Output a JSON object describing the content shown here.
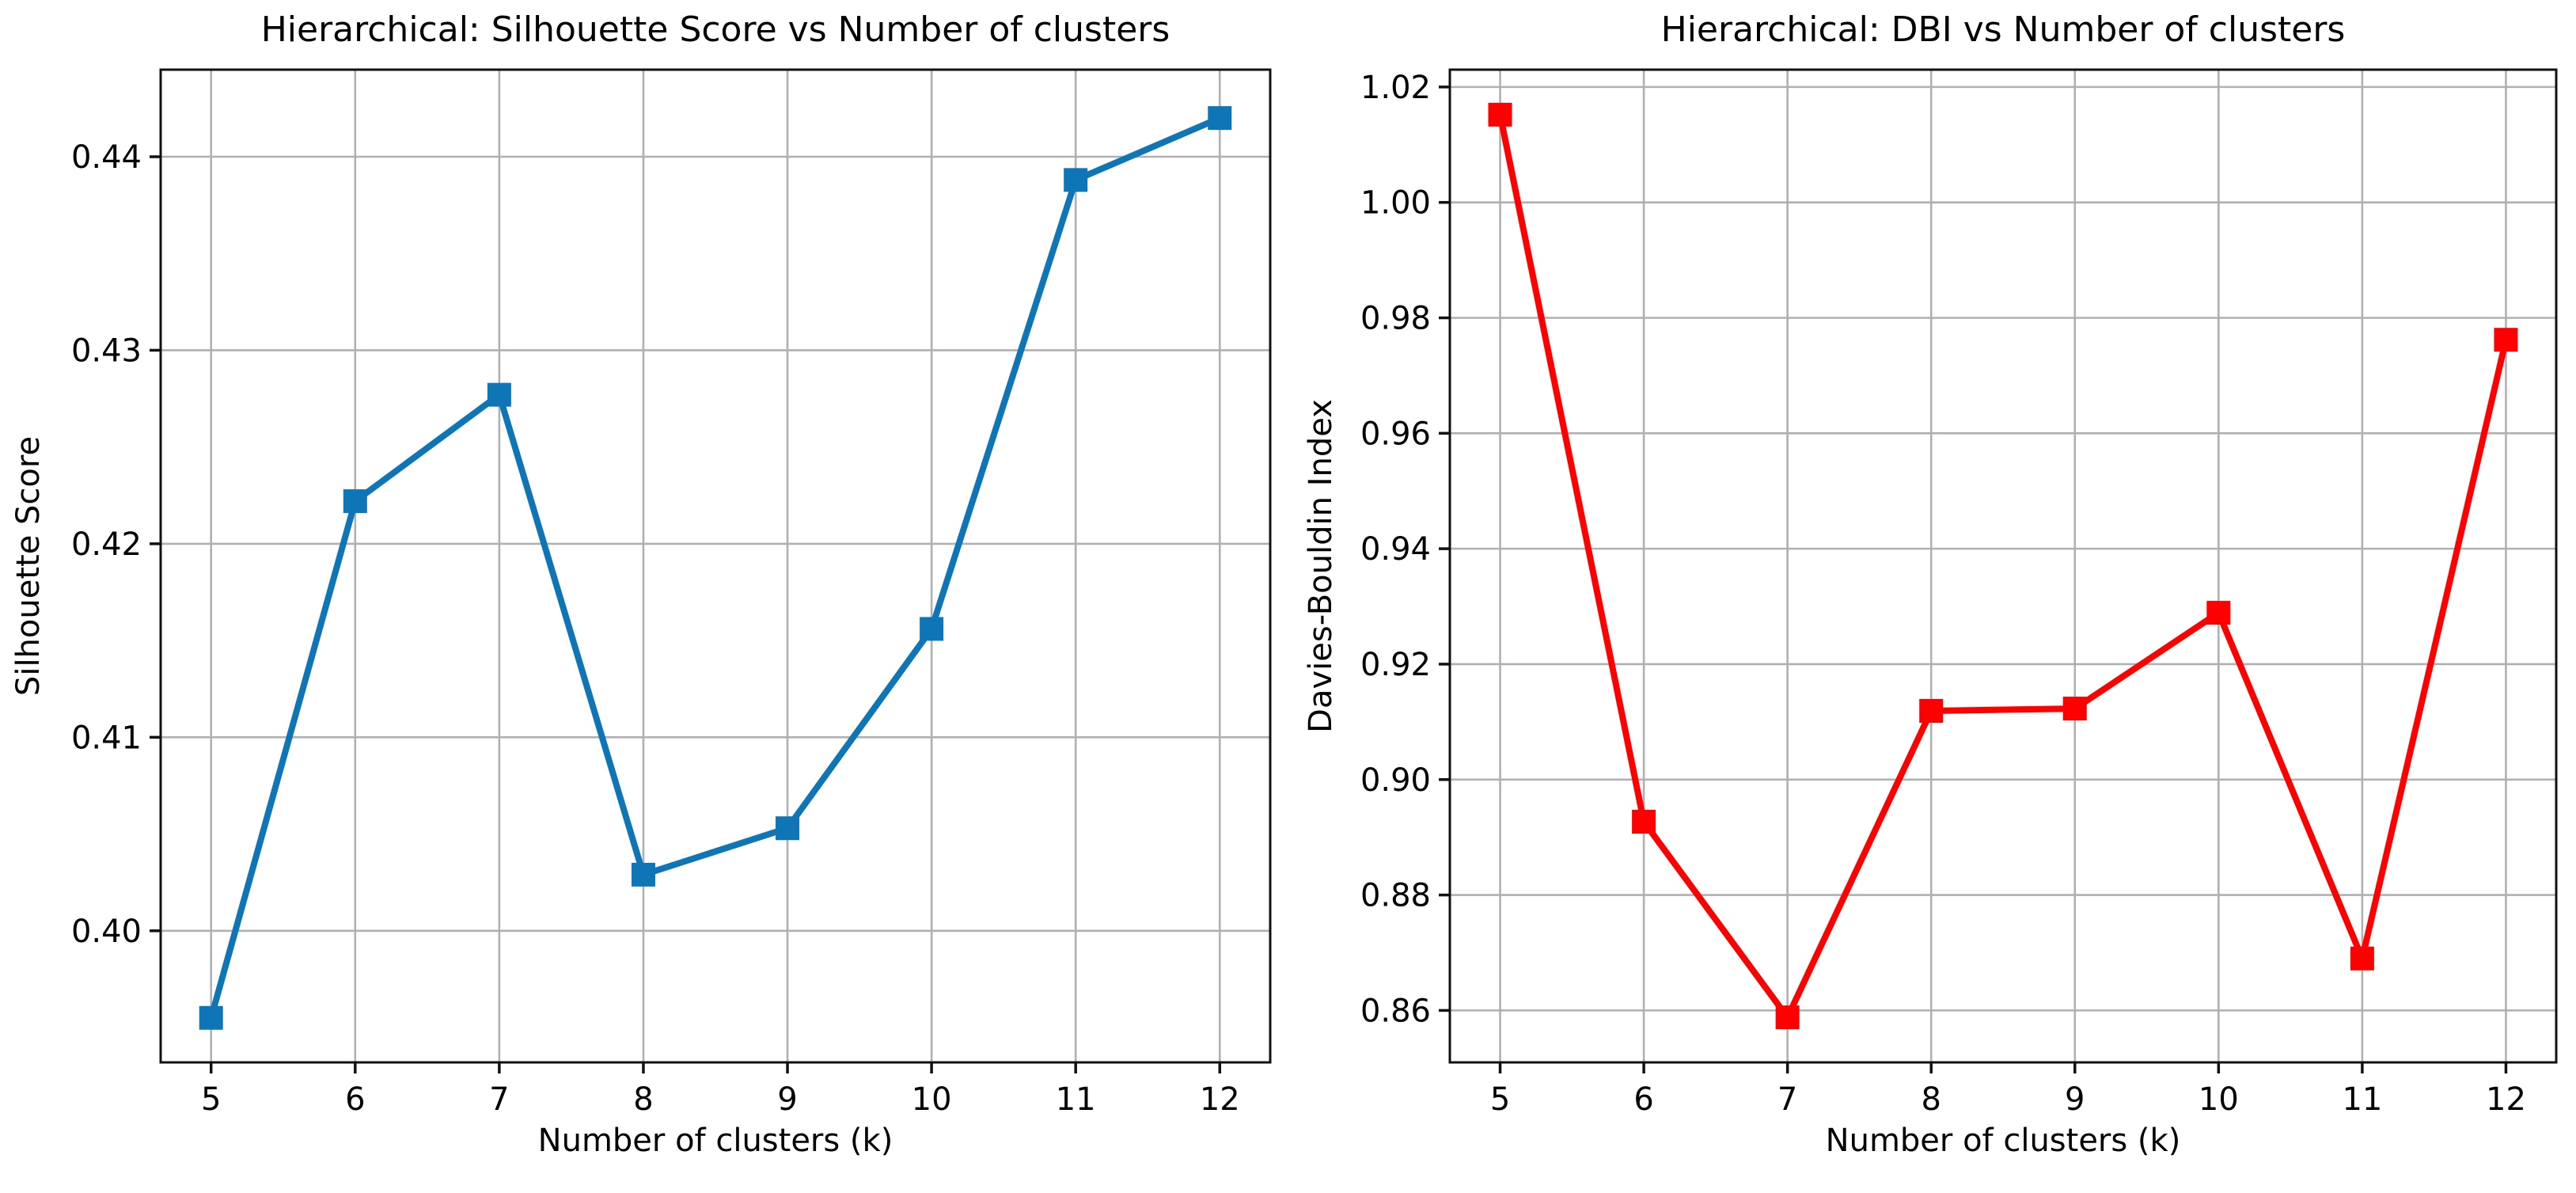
{
  "figure": {
    "background_color": "#ffffff",
    "text_color": "#000000",
    "grid_color": "#b0b0b0",
    "spine_color": "#111111"
  },
  "chart_data": [
    {
      "type": "line",
      "title": "Hierarchical: Silhouette Score vs Number of clusters",
      "xlabel": "Number of clusters (k)",
      "ylabel": "Silhouette Score",
      "x": [
        5,
        6,
        7,
        8,
        9,
        10,
        11,
        12
      ],
      "values": [
        0.3955,
        0.4222,
        0.4277,
        0.4029,
        0.4053,
        0.4156,
        0.4388,
        0.442
      ],
      "xlim": [
        4.65,
        12.35
      ],
      "ylim": [
        0.3932,
        0.4445
      ],
      "xticks": [
        5,
        6,
        7,
        8,
        9,
        10,
        11,
        12
      ],
      "yticks": [
        0.4,
        0.41,
        0.42,
        0.43,
        0.44
      ],
      "ytick_decimals": 2,
      "line_color": "#0e76b6",
      "marker": "square",
      "grid": true,
      "legend": null
    },
    {
      "type": "line",
      "title": "Hierarchical: DBI vs Number of clusters",
      "xlabel": "Number of clusters (k)",
      "ylabel": "Davies-Bouldin Index",
      "x": [
        5,
        6,
        7,
        8,
        9,
        10,
        11,
        12
      ],
      "values": [
        1.0152,
        0.8927,
        0.8588,
        0.9119,
        0.9123,
        0.9289,
        0.869,
        0.9762
      ],
      "xlim": [
        4.65,
        12.35
      ],
      "ylim": [
        0.851,
        1.023
      ],
      "xticks": [
        5,
        6,
        7,
        8,
        9,
        10,
        11,
        12
      ],
      "yticks": [
        0.86,
        0.88,
        0.9,
        0.92,
        0.94,
        0.96,
        0.98,
        1.0,
        1.02
      ],
      "ytick_decimals": 2,
      "line_color": "#fe0000",
      "marker": "square",
      "grid": true,
      "legend": null
    }
  ]
}
